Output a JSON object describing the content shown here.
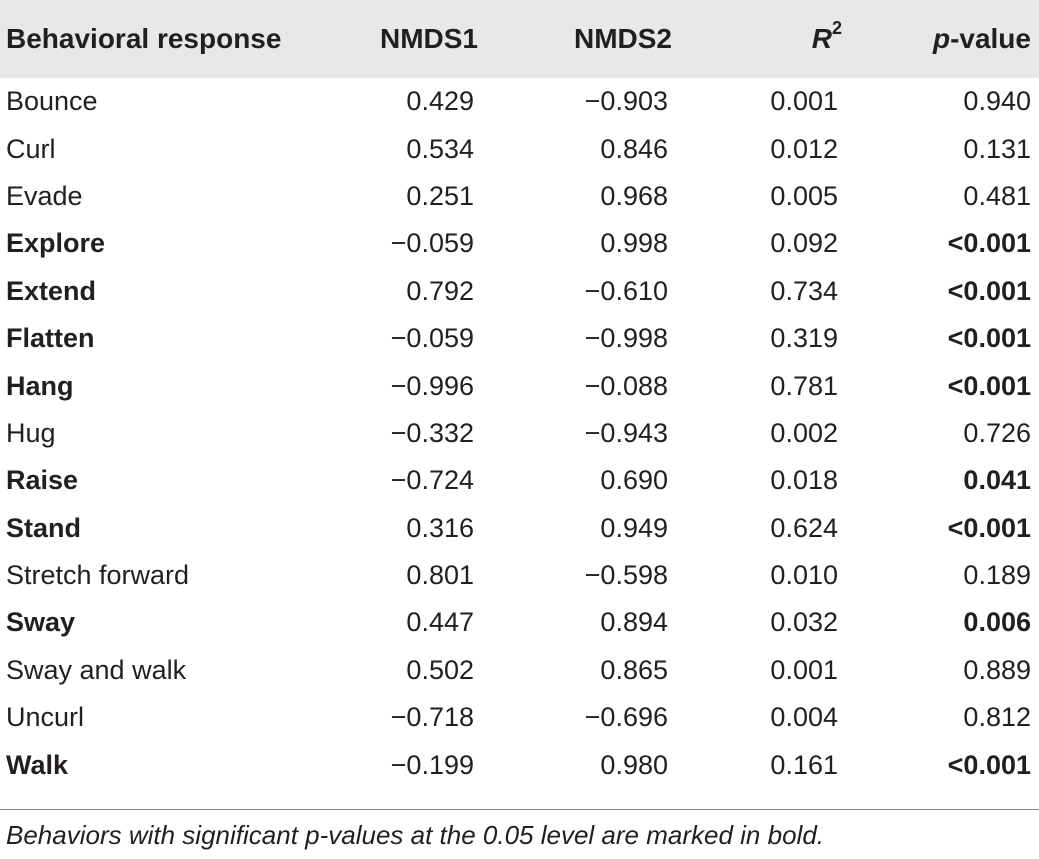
{
  "table": {
    "headers": {
      "behavior": "Behavioral response",
      "nmds1": "NMDS1",
      "nmds2": "NMDS2",
      "r2_base": "R",
      "r2_sup": "2",
      "p_italic": "p",
      "p_rest": "-value"
    },
    "rows": [
      {
        "behavior": "Bounce",
        "nmds1": "0.429",
        "nmds2": "−0.903",
        "r2": "0.001",
        "p": "0.940",
        "bold": false
      },
      {
        "behavior": "Curl",
        "nmds1": "0.534",
        "nmds2": "0.846",
        "r2": "0.012",
        "p": "0.131",
        "bold": false
      },
      {
        "behavior": "Evade",
        "nmds1": "0.251",
        "nmds2": "0.968",
        "r2": "0.005",
        "p": "0.481",
        "bold": false
      },
      {
        "behavior": "Explore",
        "nmds1": "−0.059",
        "nmds2": "0.998",
        "r2": "0.092",
        "p": "<0.001",
        "bold": true
      },
      {
        "behavior": "Extend",
        "nmds1": "0.792",
        "nmds2": "−0.610",
        "r2": "0.734",
        "p": "<0.001",
        "bold": true
      },
      {
        "behavior": "Flatten",
        "nmds1": "−0.059",
        "nmds2": "−0.998",
        "r2": "0.319",
        "p": "<0.001",
        "bold": true
      },
      {
        "behavior": "Hang",
        "nmds1": "−0.996",
        "nmds2": "−0.088",
        "r2": "0.781",
        "p": "<0.001",
        "bold": true
      },
      {
        "behavior": "Hug",
        "nmds1": "−0.332",
        "nmds2": "−0.943",
        "r2": "0.002",
        "p": "0.726",
        "bold": false
      },
      {
        "behavior": "Raise",
        "nmds1": "−0.724",
        "nmds2": "0.690",
        "r2": "0.018",
        "p": "0.041",
        "bold": true
      },
      {
        "behavior": "Stand",
        "nmds1": "0.316",
        "nmds2": "0.949",
        "r2": "0.624",
        "p": "<0.001",
        "bold": true
      },
      {
        "behavior": "Stretch forward",
        "nmds1": "0.801",
        "nmds2": "−0.598",
        "r2": "0.010",
        "p": "0.189",
        "bold": false
      },
      {
        "behavior": "Sway",
        "nmds1": "0.447",
        "nmds2": "0.894",
        "r2": "0.032",
        "p": "0.006",
        "bold": true
      },
      {
        "behavior": "Sway and walk",
        "nmds1": "0.502",
        "nmds2": "0.865",
        "r2": "0.001",
        "p": "0.889",
        "bold": false
      },
      {
        "behavior": "Uncurl",
        "nmds1": "−0.718",
        "nmds2": "−0.696",
        "r2": "0.004",
        "p": "0.812",
        "bold": false
      },
      {
        "behavior": "Walk",
        "nmds1": "−0.199",
        "nmds2": "0.980",
        "r2": "0.161",
        "p": "<0.001",
        "bold": true
      }
    ]
  },
  "footnote": "Behaviors with significant p-values at the 0.05 level are marked in bold."
}
